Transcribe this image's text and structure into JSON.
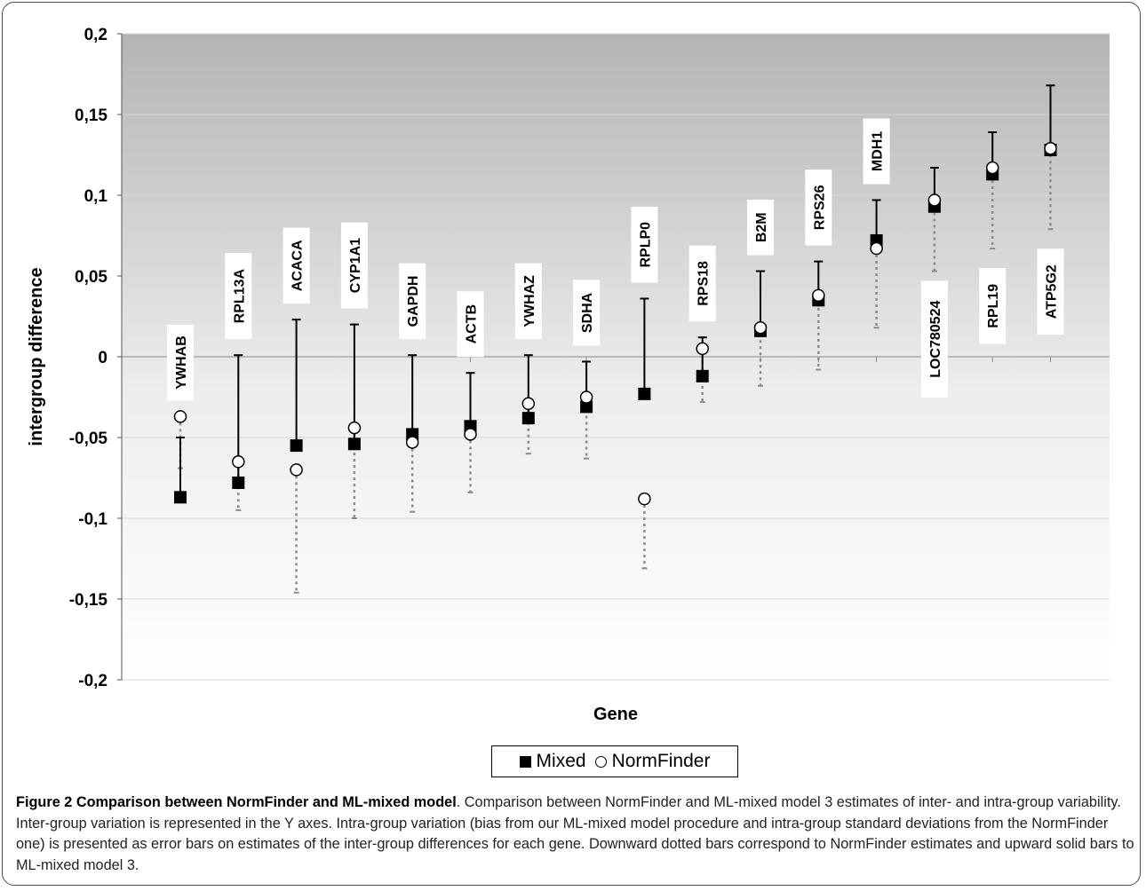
{
  "chart_data": {
    "type": "scatter",
    "xlabel": "Gene",
    "ylabel": "intergroup difference",
    "ylim": [
      -0.2,
      0.2
    ],
    "yticks": [
      -0.2,
      -0.15,
      -0.1,
      -0.05,
      0,
      0.05,
      0.1,
      0.15,
      0.2
    ],
    "ytick_labels": [
      "-0,2",
      "-0,15",
      "-0,1",
      "-0,05",
      "0",
      "0,05",
      "0,1",
      "0,15",
      "0,2"
    ],
    "grid": true,
    "legend_position": "bottom",
    "categories": [
      "YWHAB",
      "RPL13A",
      "ACACA",
      "CYP1A1",
      "GAPDH",
      "ACTB",
      "YWHAZ",
      "SDHA",
      "RPLP0",
      "RPS18",
      "B2M",
      "RPS26",
      "MDH1",
      "LOC780524",
      "RPL19",
      "ATP5G2"
    ],
    "label_placement": [
      "above",
      "above",
      "above",
      "above",
      "above",
      "above",
      "above",
      "above",
      "above",
      "above",
      "above",
      "above",
      "above",
      "below",
      "below",
      "below"
    ],
    "series": [
      {
        "name": "Mixed",
        "marker": "filled-square",
        "values": [
          -0.087,
          -0.078,
          -0.055,
          -0.054,
          -0.048,
          -0.043,
          -0.038,
          -0.031,
          -0.023,
          -0.012,
          0.016,
          0.035,
          0.072,
          0.093,
          0.113,
          0.128
        ],
        "error_upper": [
          -0.05,
          0.001,
          0.023,
          0.02,
          0.001,
          -0.01,
          0.001,
          -0.003,
          0.036,
          0.012,
          0.053,
          0.059,
          0.097,
          0.117,
          0.139,
          0.168
        ],
        "error_style": "solid-up"
      },
      {
        "name": "NormFinder",
        "marker": "open-circle",
        "values": [
          -0.037,
          -0.065,
          -0.07,
          -0.044,
          -0.053,
          -0.048,
          -0.029,
          -0.025,
          -0.088,
          0.005,
          0.018,
          0.038,
          0.067,
          0.097,
          0.117,
          0.129
        ],
        "error_lower": [
          -0.069,
          -0.095,
          -0.146,
          -0.1,
          -0.096,
          -0.084,
          -0.06,
          -0.063,
          -0.131,
          -0.028,
          -0.018,
          -0.008,
          0.018,
          0.053,
          0.067,
          0.079
        ],
        "error_style": "dotted-down"
      }
    ],
    "colors": {
      "plot_bg_top": "#b4b4b4",
      "plot_bg_bottom": "#ffffff",
      "grid": "#d8d8d8",
      "mixed": "#000000",
      "normfinder_dotted": "#8c8c8c",
      "label_box": "#ffffff"
    }
  },
  "caption": {
    "bold": "Figure 2 Comparison between NormFinder and ML-mixed model",
    "text": ". Comparison between NormFinder and ML-mixed model 3 estimates of inter- and intra-group variability. Inter-group variation is represented in the Y axes. Intra-group variation (bias from our ML-mixed model procedure and intra-group standard deviations from the NormFinder one) is presented as error bars on estimates of the inter-group differences for each gene. Downward dotted bars correspond to NormFinder estimates and upward solid bars to ML-mixed model 3."
  }
}
